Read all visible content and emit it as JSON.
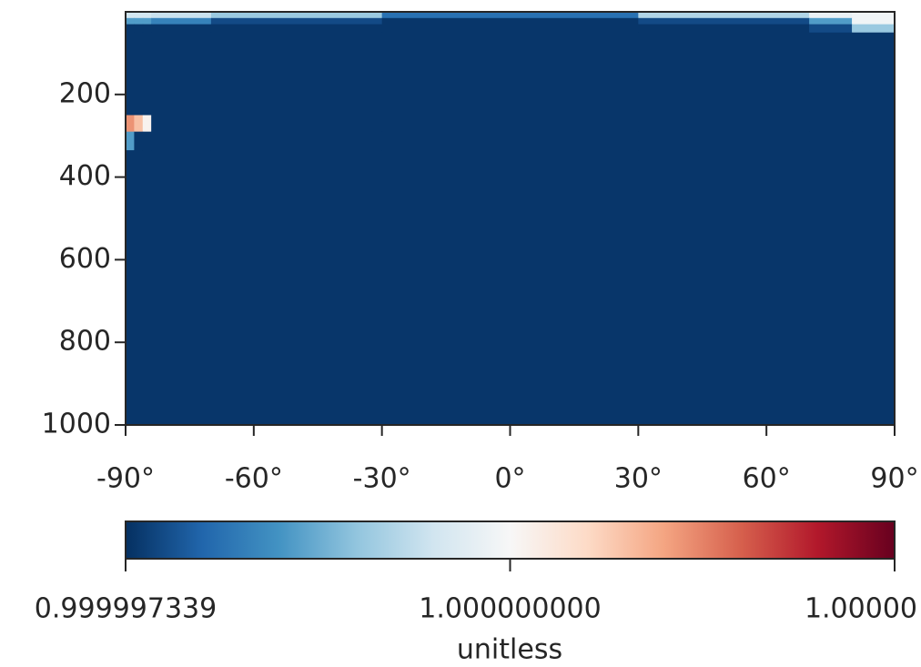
{
  "chart_data": {
    "type": "heatmap",
    "x": [
      -90,
      -88,
      -86,
      -84,
      -70,
      -30,
      30,
      70,
      80,
      90
    ],
    "y": [
      0,
      15,
      30,
      50,
      250,
      290,
      335,
      1000
    ],
    "z": [
      [
        0.9999995,
        0.9999995,
        0.9999995,
        0.9999994,
        0.999999,
        0.999998,
        0.9999992,
        0.9999998,
        0.9999999
      ],
      [
        0.9999985,
        0.9999985,
        0.9999985,
        0.9999982,
        0.9999976,
        0.9999974,
        0.9999976,
        0.9999985,
        0.9999999
      ],
      [
        0.9999974,
        0.9999974,
        0.9999974,
        0.9999974,
        0.9999974,
        0.9999974,
        0.9999974,
        0.9999976,
        0.999999
      ],
      [
        0.9999974,
        0.9999974,
        0.9999974,
        0.9999974,
        0.9999974,
        0.9999974,
        0.9999974,
        0.9999974,
        0.9999974
      ],
      [
        1.0000012,
        1.0000008,
        1.0000001,
        0.9999974,
        0.9999974,
        0.9999974,
        0.9999974,
        0.9999974,
        0.9999974
      ],
      [
        0.9999985,
        0.9999974,
        0.9999974,
        0.9999974,
        0.9999974,
        0.9999974,
        0.9999974,
        0.9999974,
        0.9999974
      ],
      [
        0.9999974,
        0.9999974,
        0.9999974,
        0.9999974,
        0.9999974,
        0.9999974,
        0.9999974,
        0.9999974,
        0.9999974
      ]
    ],
    "colormap": "RdBu_r",
    "xlim": [
      -90,
      90
    ],
    "xticks": [
      {
        "value": -90,
        "label": "-90°"
      },
      {
        "value": -60,
        "label": "-60°"
      },
      {
        "value": -30,
        "label": "-30°"
      },
      {
        "value": 0,
        "label": "0°"
      },
      {
        "value": 30,
        "label": "30°"
      },
      {
        "value": 60,
        "label": "60°"
      },
      {
        "value": 90,
        "label": "90°"
      }
    ],
    "ylim": [
      1000,
      0
    ],
    "yticks": [
      200,
      400,
      600,
      800,
      1000
    ],
    "clim": [
      0.999997339,
      1.000002661
    ],
    "cticks": [
      {
        "value": 0.999997339,
        "label": "0.999997339"
      },
      {
        "value": 1.0,
        "label": "1.000000000"
      },
      {
        "value": 1.000002661,
        "label": "1.00000"
      }
    ],
    "colorbar_label": "unitless"
  }
}
